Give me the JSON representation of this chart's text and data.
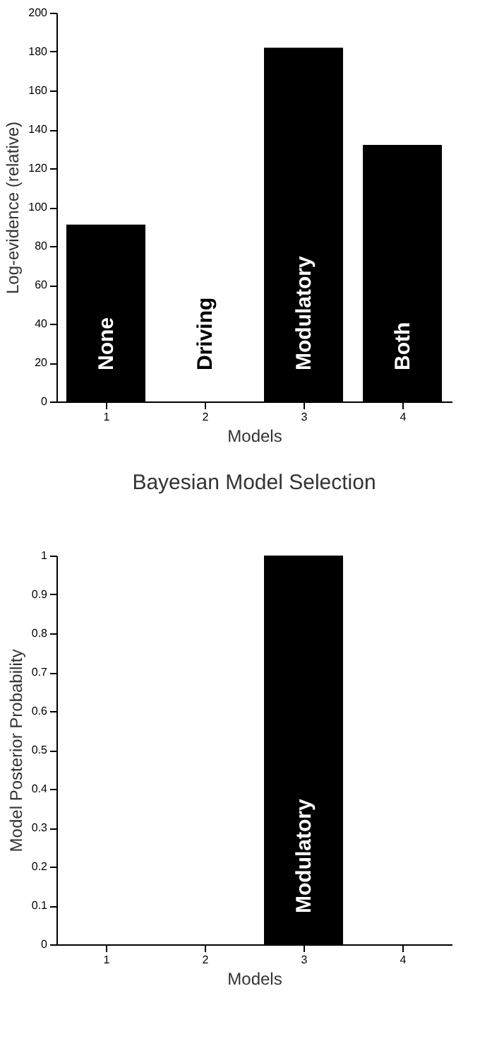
{
  "chart_data": [
    {
      "type": "bar",
      "xlabel": "Models",
      "ylabel": "Log-evidence (relative)",
      "categories": [
        "1",
        "2",
        "3",
        "4"
      ],
      "values": [
        91,
        0,
        182,
        132
      ],
      "color": "#000000",
      "ylim": [
        0,
        200
      ],
      "yticks": [
        0,
        20,
        40,
        60,
        80,
        100,
        120,
        140,
        160,
        180,
        200
      ],
      "grid": false,
      "value_labels": [
        "None",
        "Driving",
        "Modulatory",
        "Both"
      ]
    },
    {
      "type": "bar",
      "title": "Bayesian Model Selection",
      "xlabel": "Models",
      "ylabel": "Model Posterior Probability",
      "categories": [
        "1",
        "2",
        "3",
        "4"
      ],
      "values": [
        0,
        0,
        1,
        0
      ],
      "color": "#000000",
      "ylim": [
        0,
        1
      ],
      "yticks": [
        0,
        0.1,
        0.2,
        0.3,
        0.4,
        0.5,
        0.6,
        0.7,
        0.8,
        0.9,
        1
      ],
      "grid": false,
      "value_labels": [
        null,
        null,
        "Modulatory",
        null
      ]
    }
  ]
}
